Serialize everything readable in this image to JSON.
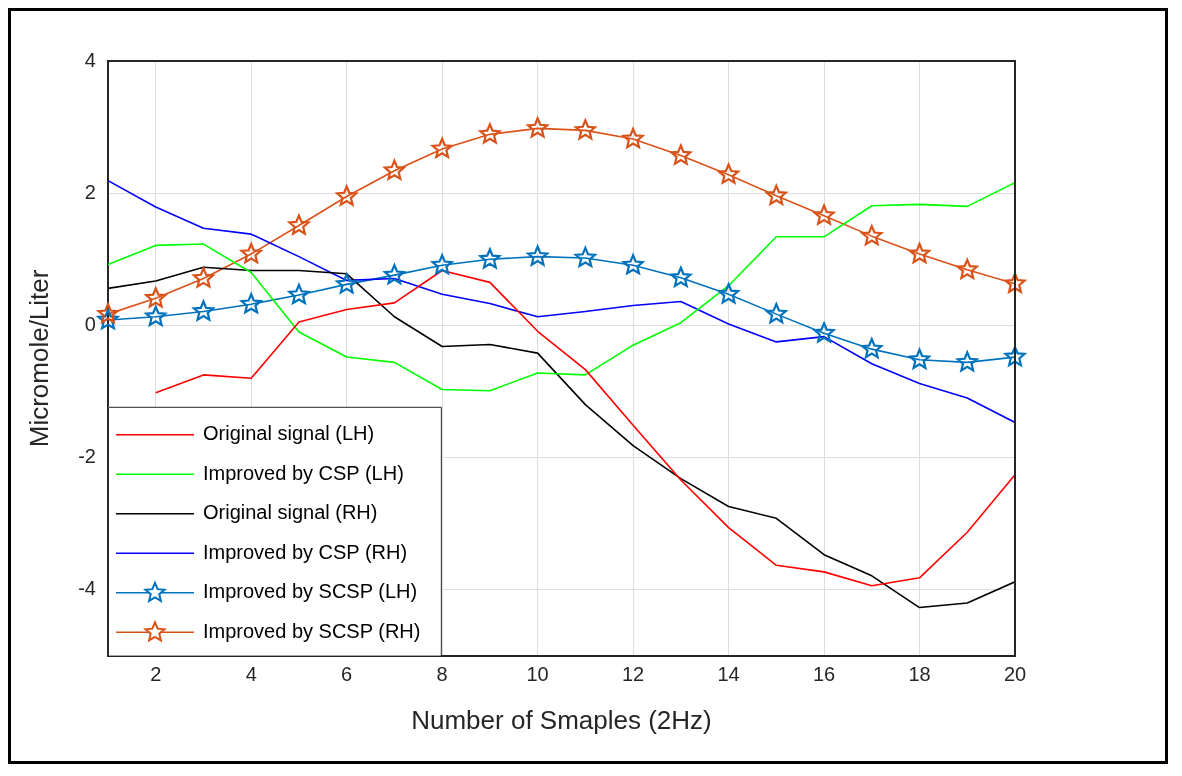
{
  "chart_data": {
    "type": "line",
    "xlabel": "Number of Smaples (2Hz)",
    "ylabel": "Micromole/Liter",
    "x": [
      1,
      2,
      3,
      4,
      5,
      6,
      7,
      8,
      9,
      10,
      11,
      12,
      13,
      14,
      15,
      16,
      17,
      18,
      19,
      20
    ],
    "xlim": [
      1,
      20
    ],
    "xticks": [
      2,
      4,
      6,
      8,
      10,
      12,
      14,
      16,
      18,
      20
    ],
    "ylim": [
      -5,
      4
    ],
    "yticks": [
      -4,
      -2,
      0,
      2,
      4
    ],
    "grid": true,
    "legend": "bottom left",
    "series": [
      {
        "name": "Original signal (LH)",
        "color": "#ff0000",
        "marker": "none",
        "values": [
          null,
          -1.02,
          -0.75,
          -0.8,
          0.05,
          0.24,
          0.34,
          0.83,
          0.65,
          -0.09,
          -0.67,
          -1.51,
          -2.34,
          -3.06,
          -3.63,
          -3.73,
          -3.94,
          -3.82,
          -3.13,
          -2.26
        ]
      },
      {
        "name": "Improved by CSP (LH)",
        "color": "#00ff00",
        "marker": "none",
        "values": [
          0.92,
          1.21,
          1.23,
          0.8,
          -0.1,
          -0.48,
          -0.56,
          -0.97,
          -0.99,
          -0.72,
          -0.75,
          -0.3,
          0.04,
          0.6,
          1.34,
          1.34,
          1.81,
          1.83,
          1.8,
          2.16
        ]
      },
      {
        "name": "Original signal (RH)",
        "color": "#000000",
        "marker": "none",
        "values": [
          0.56,
          0.67,
          0.88,
          0.83,
          0.83,
          0.78,
          0.13,
          -0.32,
          -0.29,
          -0.42,
          -1.2,
          -1.82,
          -2.32,
          -2.74,
          -2.92,
          -3.47,
          -3.79,
          -4.27,
          -4.2,
          -3.88
        ]
      },
      {
        "name": "Improved by CSP (RH)",
        "color": "#0000ff",
        "marker": "none",
        "values": [
          2.19,
          1.79,
          1.47,
          1.38,
          1.04,
          0.68,
          0.71,
          0.47,
          0.33,
          0.13,
          0.21,
          0.3,
          0.36,
          0.02,
          -0.25,
          -0.17,
          -0.58,
          -0.88,
          -1.1,
          -1.47
        ]
      },
      {
        "name": "Improved by SCSP (LH)",
        "color": "#0072bd",
        "marker": "star",
        "values": [
          0.08,
          0.13,
          0.21,
          0.32,
          0.46,
          0.62,
          0.76,
          0.91,
          1.0,
          1.04,
          1.02,
          0.91,
          0.72,
          0.47,
          0.17,
          -0.12,
          -0.36,
          -0.52,
          -0.56,
          -0.48
        ]
      },
      {
        "name": "Improved by SCSP (RH)",
        "color": "#d95319",
        "marker": "star",
        "values": [
          0.17,
          0.41,
          0.71,
          1.08,
          1.51,
          1.95,
          2.34,
          2.67,
          2.89,
          2.98,
          2.95,
          2.82,
          2.57,
          2.28,
          1.96,
          1.66,
          1.35,
          1.08,
          0.84,
          0.63
        ]
      }
    ]
  }
}
